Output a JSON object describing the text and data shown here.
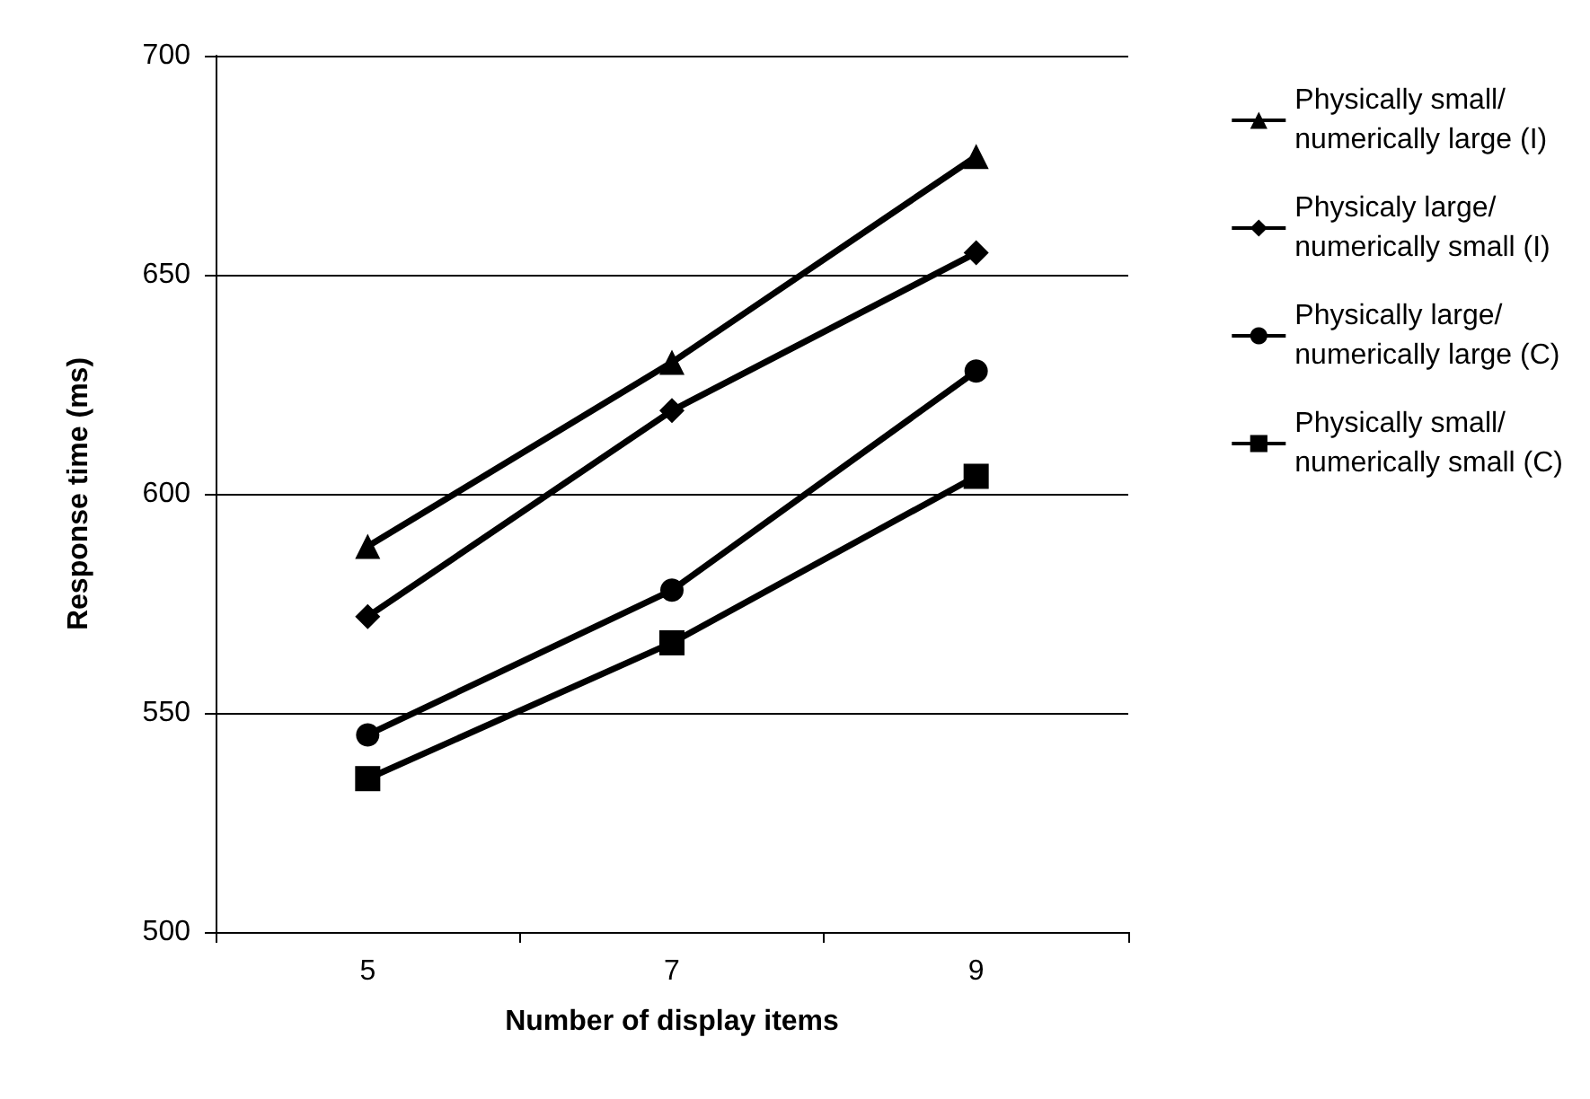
{
  "chart_data": {
    "type": "line",
    "xlabel": "Number of display items",
    "ylabel": "Response time (ms)",
    "categories": [
      "5",
      "7",
      "9"
    ],
    "series": [
      {
        "name": "Physically small/ numerically large (I)",
        "color": "#000000",
        "marker": "triangle",
        "values": [
          588,
          630,
          677
        ]
      },
      {
        "name": "Physicaly large/ numerically small (I)",
        "color": "#000000",
        "marker": "diamond",
        "values": [
          572,
          619,
          655
        ]
      },
      {
        "name": "Physically large/ numerically large (C)",
        "color": "#000000",
        "marker": "circle",
        "values": [
          545,
          578,
          628
        ]
      },
      {
        "name": "Physically small/ numerically small (C)",
        "color": "#000000",
        "marker": "square",
        "values": [
          535,
          566,
          604
        ]
      }
    ],
    "ylim": [
      500,
      700
    ],
    "yticks": [
      500,
      550,
      600,
      650,
      700
    ],
    "grid": "y",
    "legend": "right",
    "line_style": "solid"
  }
}
